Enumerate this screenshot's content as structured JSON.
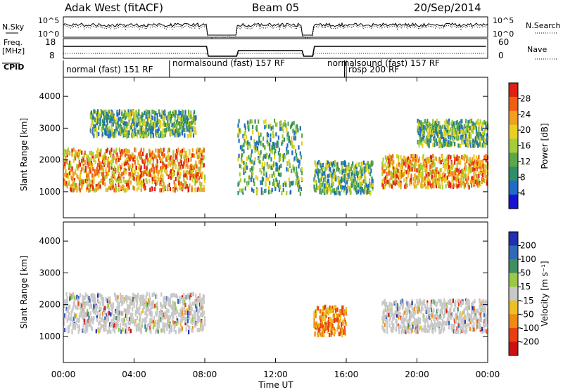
{
  "chart_data": {
    "type": "heatmap",
    "header": {
      "title": "Adak West (fitACF)",
      "beam": "Beam 05",
      "date": "20/Sep/2014"
    },
    "nsky_panel": {
      "left_label": "N.Sky",
      "right_label": "N.Search",
      "ticks_left": [
        "10^5",
        "10^0"
      ],
      "ticks_right": [
        "10^5",
        "10^0"
      ]
    },
    "freq_panel": {
      "left_label_1": "Freq.",
      "left_label_2": "[MHz]",
      "right_label": "Nave",
      "ticks_left": [
        "18",
        "8"
      ],
      "ticks_right": [
        "60",
        "0"
      ]
    },
    "cpid": {
      "label": "CPID",
      "segments": [
        {
          "name": "normal (fast) 151 RF",
          "start_h": 0.0,
          "end_h": 6.0
        },
        {
          "name": "normalsound (fast) 157 RF",
          "start_h": 6.0,
          "end_h": 15.9
        },
        {
          "name": "rbsp 200 RF",
          "start_h": 15.9,
          "end_h": 16.0
        },
        {
          "name": "normalsound (fast) 157 RF",
          "start_h": 16.0,
          "end_h": 22.0
        }
      ]
    },
    "x_axis": {
      "label": "Time UT",
      "range_hours": [
        0,
        24
      ],
      "ticks": [
        "00:00",
        "04:00",
        "08:00",
        "12:00",
        "16:00",
        "20:00",
        "00:00"
      ]
    },
    "y_axis": {
      "label": "Slant Range [km]",
      "range_km": [
        180,
        4600
      ],
      "ticks": [
        "1000",
        "2000",
        "3000",
        "4000"
      ]
    },
    "power_panel": {
      "colorbar_label": "Power [dB]",
      "colorbar_ticks": [
        "4",
        "8",
        "12",
        "16",
        "20",
        "24",
        "28"
      ],
      "colors": [
        "#1414d2",
        "#1f6bc8",
        "#2f8f6a",
        "#5aa84a",
        "#a6cc3c",
        "#e8d020",
        "#f2a020",
        "#f06010",
        "#e02010"
      ]
    },
    "velocity_panel": {
      "colorbar_label": "Velocity [m s⁻¹]",
      "colorbar_ticks": [
        "200",
        "100",
        "50",
        "15",
        "-15",
        "-50",
        "-100",
        "-200"
      ],
      "colors": [
        "#2030b0",
        "#2f6ab8",
        "#3f9060",
        "#9bc845",
        "#c8c8c8",
        "#ecc020",
        "#f08a10",
        "#e84010",
        "#d01010"
      ]
    },
    "data_gaps_h": [
      [
        8.1,
        9.8
      ],
      [
        13.5,
        14.1
      ]
    ],
    "echo_regions": [
      {
        "panel": "power",
        "start_h": 0.0,
        "end_h": 8.0,
        "range_km": [
          1100,
          2400
        ],
        "level": "high"
      },
      {
        "panel": "power",
        "start_h": 1.5,
        "end_h": 7.5,
        "range_km": [
          2800,
          3600
        ],
        "level": "mid"
      },
      {
        "panel": "power",
        "start_h": 9.8,
        "end_h": 13.5,
        "range_km": [
          1000,
          3300
        ],
        "level": "mid"
      },
      {
        "panel": "power",
        "start_h": 14.1,
        "end_h": 17.5,
        "range_km": [
          1000,
          2000
        ],
        "level": "mid"
      },
      {
        "panel": "power",
        "start_h": 18.0,
        "end_h": 24.0,
        "range_km": [
          1200,
          2200
        ],
        "level": "high"
      },
      {
        "panel": "power",
        "start_h": 20.0,
        "end_h": 24.0,
        "range_km": [
          2500,
          3300
        ],
        "level": "mid"
      },
      {
        "panel": "velocity",
        "start_h": 0.0,
        "end_h": 8.0,
        "range_km": [
          1200,
          2400
        ],
        "level": "near-zero"
      },
      {
        "panel": "velocity",
        "start_h": 14.1,
        "end_h": 16.0,
        "range_km": [
          1100,
          2000
        ],
        "level": "negative"
      },
      {
        "panel": "velocity",
        "start_h": 18.0,
        "end_h": 24.0,
        "range_km": [
          1200,
          2200
        ],
        "level": "near-zero"
      }
    ]
  }
}
